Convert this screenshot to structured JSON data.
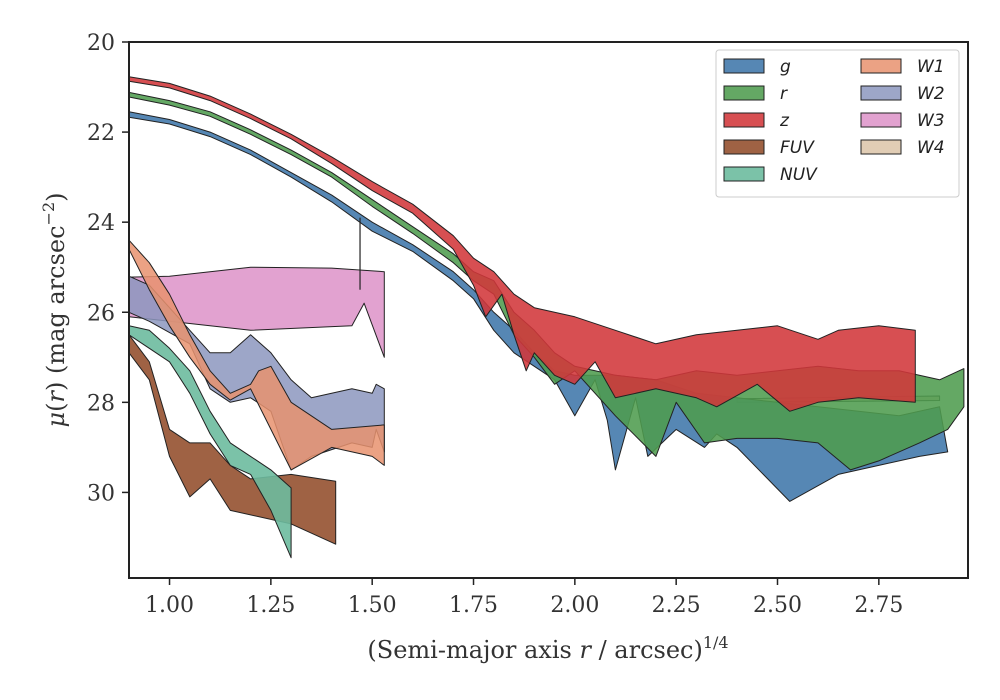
{
  "chart_data": {
    "type": "area",
    "xlabel": "(Semi-major axis r / arcsec)^{1/4}",
    "xlabel_parts": {
      "prefix": "(Semi-major axis ",
      "var": "r",
      "middle": " / arcsec)",
      "sup": "1/4"
    },
    "ylabel": "μ(r) (mag arcsec^{−2})",
    "ylabel_parts": {
      "mu": "μ",
      "open": "(",
      "var": "r",
      "rest": ") (mag arcsec",
      "sup": "−2",
      "close": ")"
    },
    "xlim": [
      0.9,
      2.97
    ],
    "ylim": [
      31.9,
      20.0
    ],
    "y_inverted": true,
    "xticks": [
      1.0,
      1.25,
      1.5,
      1.75,
      2.0,
      2.25,
      2.5,
      2.75
    ],
    "xtick_labels": [
      "1.00",
      "1.25",
      "1.50",
      "1.75",
      "2.00",
      "2.25",
      "2.50",
      "2.75"
    ],
    "yticks": [
      20,
      22,
      24,
      26,
      28,
      30
    ],
    "ytick_labels": [
      "20",
      "22",
      "24",
      "26",
      "28",
      "30"
    ],
    "grid": false,
    "legend_position": "top-right",
    "legend_columns": 2,
    "series": [
      {
        "name": "W4",
        "color": "#d4b896",
        "opacity": 0.7,
        "upper": [
          [
            2.4,
            27.92
          ],
          [
            2.9,
            27.86
          ]
        ],
        "lower": [
          [
            2.4,
            28.0
          ],
          [
            2.9,
            27.96
          ]
        ]
      },
      {
        "name": "W3",
        "color": "#d67bbc",
        "opacity": 0.7,
        "upper": [
          [
            0.9,
            25.22
          ],
          [
            1.0,
            25.2
          ],
          [
            1.2,
            25.0
          ],
          [
            1.4,
            25.02
          ],
          [
            1.53,
            25.1
          ]
        ],
        "lower": [
          [
            0.9,
            26.1
          ],
          [
            1.0,
            26.2
          ],
          [
            1.2,
            26.4
          ],
          [
            1.45,
            26.3
          ],
          [
            1.48,
            25.8
          ],
          [
            1.53,
            27.0
          ]
        ]
      },
      {
        "name": "W2",
        "color": "#8c96be",
        "opacity": 0.85,
        "upper": [
          [
            0.9,
            25.2
          ],
          [
            0.95,
            25.4
          ],
          [
            1.05,
            26.4
          ],
          [
            1.1,
            26.9
          ],
          [
            1.15,
            26.9
          ],
          [
            1.2,
            26.5
          ],
          [
            1.25,
            26.9
          ],
          [
            1.3,
            27.5
          ],
          [
            1.35,
            27.9
          ],
          [
            1.45,
            27.7
          ],
          [
            1.5,
            27.8
          ],
          [
            1.51,
            27.6
          ],
          [
            1.53,
            27.7
          ]
        ],
        "lower": [
          [
            0.9,
            26.0
          ],
          [
            0.95,
            26.2
          ],
          [
            1.05,
            26.7
          ],
          [
            1.1,
            27.7
          ],
          [
            1.15,
            28.0
          ],
          [
            1.2,
            27.9
          ],
          [
            1.25,
            28.2
          ],
          [
            1.3,
            29.5
          ],
          [
            1.35,
            29.2
          ],
          [
            1.45,
            28.9
          ],
          [
            1.5,
            29.0
          ],
          [
            1.51,
            28.6
          ],
          [
            1.53,
            29.1
          ]
        ]
      },
      {
        "name": "W1",
        "color": "#e8926e",
        "opacity": 0.85,
        "upper": [
          [
            0.9,
            24.4
          ],
          [
            0.95,
            24.9
          ],
          [
            1.0,
            25.6
          ],
          [
            1.05,
            26.5
          ],
          [
            1.1,
            27.3
          ],
          [
            1.15,
            27.8
          ],
          [
            1.2,
            27.6
          ],
          [
            1.22,
            27.3
          ],
          [
            1.25,
            27.2
          ],
          [
            1.3,
            28.0
          ],
          [
            1.4,
            28.6
          ],
          [
            1.53,
            28.5
          ]
        ],
        "lower": [
          [
            0.9,
            24.6
          ],
          [
            0.95,
            25.5
          ],
          [
            1.0,
            26.3
          ],
          [
            1.05,
            27.0
          ],
          [
            1.1,
            27.6
          ],
          [
            1.15,
            27.95
          ],
          [
            1.2,
            27.7
          ],
          [
            1.25,
            28.6
          ],
          [
            1.3,
            29.5
          ],
          [
            1.4,
            29.0
          ],
          [
            1.5,
            29.2
          ],
          [
            1.53,
            29.4
          ]
        ]
      },
      {
        "name": "FUV",
        "color": "#9a5a3a",
        "opacity": 0.95,
        "upper": [
          [
            0.9,
            26.5
          ],
          [
            0.95,
            27.1
          ],
          [
            1.0,
            28.6
          ],
          [
            1.05,
            28.9
          ],
          [
            1.1,
            28.9
          ],
          [
            1.15,
            29.4
          ],
          [
            1.2,
            29.7
          ],
          [
            1.3,
            29.6
          ],
          [
            1.41,
            29.75
          ]
        ],
        "lower": [
          [
            0.9,
            26.9
          ],
          [
            0.95,
            27.5
          ],
          [
            1.0,
            29.2
          ],
          [
            1.05,
            30.1
          ],
          [
            1.1,
            29.7
          ],
          [
            1.15,
            30.4
          ],
          [
            1.3,
            30.7
          ],
          [
            1.41,
            31.15
          ]
        ]
      },
      {
        "name": "NUV",
        "color": "#6dbb9e",
        "opacity": 0.9,
        "upper": [
          [
            0.9,
            26.3
          ],
          [
            0.95,
            26.4
          ],
          [
            1.0,
            26.8
          ],
          [
            1.05,
            27.3
          ],
          [
            1.1,
            28.2
          ],
          [
            1.15,
            28.9
          ],
          [
            1.2,
            29.2
          ],
          [
            1.25,
            29.5
          ],
          [
            1.3,
            29.9
          ]
        ],
        "lower": [
          [
            0.9,
            26.5
          ],
          [
            0.95,
            26.8
          ],
          [
            1.0,
            27.1
          ],
          [
            1.05,
            27.8
          ],
          [
            1.1,
            28.7
          ],
          [
            1.15,
            29.4
          ],
          [
            1.2,
            29.6
          ],
          [
            1.25,
            30.4
          ],
          [
            1.3,
            31.45
          ]
        ]
      },
      {
        "name": "g",
        "color": "#3f76aa",
        "opacity": 0.88,
        "upper": [
          [
            0.9,
            21.55
          ],
          [
            1.0,
            21.72
          ],
          [
            1.1,
            22.0
          ],
          [
            1.2,
            22.4
          ],
          [
            1.3,
            22.9
          ],
          [
            1.4,
            23.4
          ],
          [
            1.5,
            24.0
          ],
          [
            1.6,
            24.5
          ],
          [
            1.7,
            25.1
          ],
          [
            1.75,
            25.5
          ],
          [
            1.8,
            26.0
          ],
          [
            1.85,
            26.4
          ],
          [
            1.9,
            26.9
          ],
          [
            1.95,
            27.3
          ],
          [
            2.0,
            27.4
          ],
          [
            2.1,
            27.4
          ],
          [
            2.2,
            27.5
          ],
          [
            2.3,
            27.8
          ],
          [
            2.4,
            27.9
          ],
          [
            2.5,
            28.0
          ],
          [
            2.6,
            28.1
          ],
          [
            2.7,
            28.2
          ],
          [
            2.8,
            28.3
          ],
          [
            2.9,
            28.1
          ]
        ],
        "lower": [
          [
            0.9,
            21.67
          ],
          [
            1.0,
            21.82
          ],
          [
            1.1,
            22.1
          ],
          [
            1.2,
            22.5
          ],
          [
            1.3,
            23.0
          ],
          [
            1.4,
            23.55
          ],
          [
            1.5,
            24.2
          ],
          [
            1.6,
            24.65
          ],
          [
            1.7,
            25.3
          ],
          [
            1.75,
            25.7
          ],
          [
            1.8,
            26.4
          ],
          [
            1.85,
            26.9
          ],
          [
            1.9,
            27.2
          ],
          [
            1.95,
            27.5
          ],
          [
            2.0,
            28.3
          ],
          [
            2.05,
            27.5
          ],
          [
            2.08,
            28.4
          ],
          [
            2.1,
            29.5
          ],
          [
            2.15,
            27.9
          ],
          [
            2.18,
            29.2
          ],
          [
            2.25,
            28.6
          ],
          [
            2.32,
            29.0
          ],
          [
            2.35,
            28.7
          ],
          [
            2.4,
            29.0
          ],
          [
            2.53,
            30.2
          ],
          [
            2.65,
            29.6
          ],
          [
            2.75,
            29.4
          ],
          [
            2.85,
            29.2
          ],
          [
            2.92,
            29.1
          ]
        ]
      },
      {
        "name": "r",
        "color": "#4e9c4e",
        "opacity": 0.88,
        "upper": [
          [
            0.9,
            21.12
          ],
          [
            1.0,
            21.3
          ],
          [
            1.1,
            21.55
          ],
          [
            1.2,
            21.95
          ],
          [
            1.3,
            22.4
          ],
          [
            1.4,
            22.9
          ],
          [
            1.5,
            23.5
          ],
          [
            1.6,
            24.1
          ],
          [
            1.7,
            24.7
          ],
          [
            1.75,
            25.1
          ],
          [
            1.8,
            25.3
          ],
          [
            1.85,
            26.0
          ],
          [
            1.9,
            26.4
          ],
          [
            1.95,
            26.9
          ],
          [
            2.0,
            27.2
          ],
          [
            2.1,
            27.4
          ],
          [
            2.2,
            27.5
          ],
          [
            2.3,
            27.3
          ],
          [
            2.4,
            27.4
          ],
          [
            2.5,
            27.3
          ],
          [
            2.6,
            27.2
          ],
          [
            2.7,
            27.3
          ],
          [
            2.8,
            27.3
          ],
          [
            2.9,
            27.5
          ],
          [
            2.96,
            27.25
          ]
        ],
        "lower": [
          [
            0.9,
            21.22
          ],
          [
            1.0,
            21.4
          ],
          [
            1.1,
            21.65
          ],
          [
            1.2,
            22.05
          ],
          [
            1.3,
            22.5
          ],
          [
            1.4,
            23.0
          ],
          [
            1.5,
            23.65
          ],
          [
            1.6,
            24.25
          ],
          [
            1.7,
            24.9
          ],
          [
            1.75,
            25.3
          ],
          [
            1.8,
            25.6
          ],
          [
            1.85,
            26.5
          ],
          [
            1.9,
            27.0
          ],
          [
            1.95,
            27.6
          ],
          [
            2.0,
            27.3
          ],
          [
            2.1,
            28.3
          ],
          [
            2.2,
            29.2
          ],
          [
            2.25,
            28.0
          ],
          [
            2.32,
            28.9
          ],
          [
            2.4,
            28.8
          ],
          [
            2.5,
            28.8
          ],
          [
            2.6,
            28.9
          ],
          [
            2.68,
            29.5
          ],
          [
            2.75,
            29.3
          ],
          [
            2.85,
            28.9
          ],
          [
            2.92,
            28.6
          ],
          [
            2.96,
            28.1
          ]
        ]
      },
      {
        "name": "z",
        "color": "#d2373a",
        "opacity": 0.88,
        "upper": [
          [
            0.9,
            20.77
          ],
          [
            1.0,
            20.92
          ],
          [
            1.1,
            21.2
          ],
          [
            1.2,
            21.6
          ],
          [
            1.3,
            22.05
          ],
          [
            1.4,
            22.55
          ],
          [
            1.5,
            23.1
          ],
          [
            1.6,
            23.6
          ],
          [
            1.7,
            24.3
          ],
          [
            1.75,
            24.8
          ],
          [
            1.8,
            25.1
          ],
          [
            1.85,
            25.6
          ],
          [
            1.9,
            25.9
          ],
          [
            2.0,
            26.1
          ],
          [
            2.1,
            26.4
          ],
          [
            2.2,
            26.7
          ],
          [
            2.3,
            26.5
          ],
          [
            2.4,
            26.4
          ],
          [
            2.5,
            26.3
          ],
          [
            2.6,
            26.6
          ],
          [
            2.65,
            26.4
          ],
          [
            2.75,
            26.3
          ],
          [
            2.84,
            26.4
          ]
        ],
        "lower": [
          [
            0.9,
            20.87
          ],
          [
            1.0,
            21.02
          ],
          [
            1.1,
            21.3
          ],
          [
            1.2,
            21.7
          ],
          [
            1.3,
            22.15
          ],
          [
            1.4,
            22.7
          ],
          [
            1.5,
            23.3
          ],
          [
            1.6,
            23.8
          ],
          [
            1.7,
            24.6
          ],
          [
            1.75,
            25.4
          ],
          [
            1.78,
            26.1
          ],
          [
            1.82,
            25.6
          ],
          [
            1.85,
            26.5
          ],
          [
            1.88,
            27.3
          ],
          [
            1.9,
            26.9
          ],
          [
            1.95,
            27.4
          ],
          [
            2.0,
            27.6
          ],
          [
            2.05,
            27.1
          ],
          [
            2.1,
            27.9
          ],
          [
            2.2,
            27.7
          ],
          [
            2.3,
            27.9
          ],
          [
            2.35,
            28.1
          ],
          [
            2.45,
            27.6
          ],
          [
            2.53,
            28.2
          ],
          [
            2.6,
            28.0
          ],
          [
            2.7,
            27.9
          ],
          [
            2.84,
            28.0
          ]
        ]
      }
    ],
    "legend_order": [
      "g",
      "r",
      "z",
      "FUV",
      "NUV",
      "W1",
      "W2",
      "W3",
      "W4"
    ],
    "errorbar": {
      "x": 1.47,
      "y_top": 23.9,
      "y_bottom": 25.5
    }
  }
}
